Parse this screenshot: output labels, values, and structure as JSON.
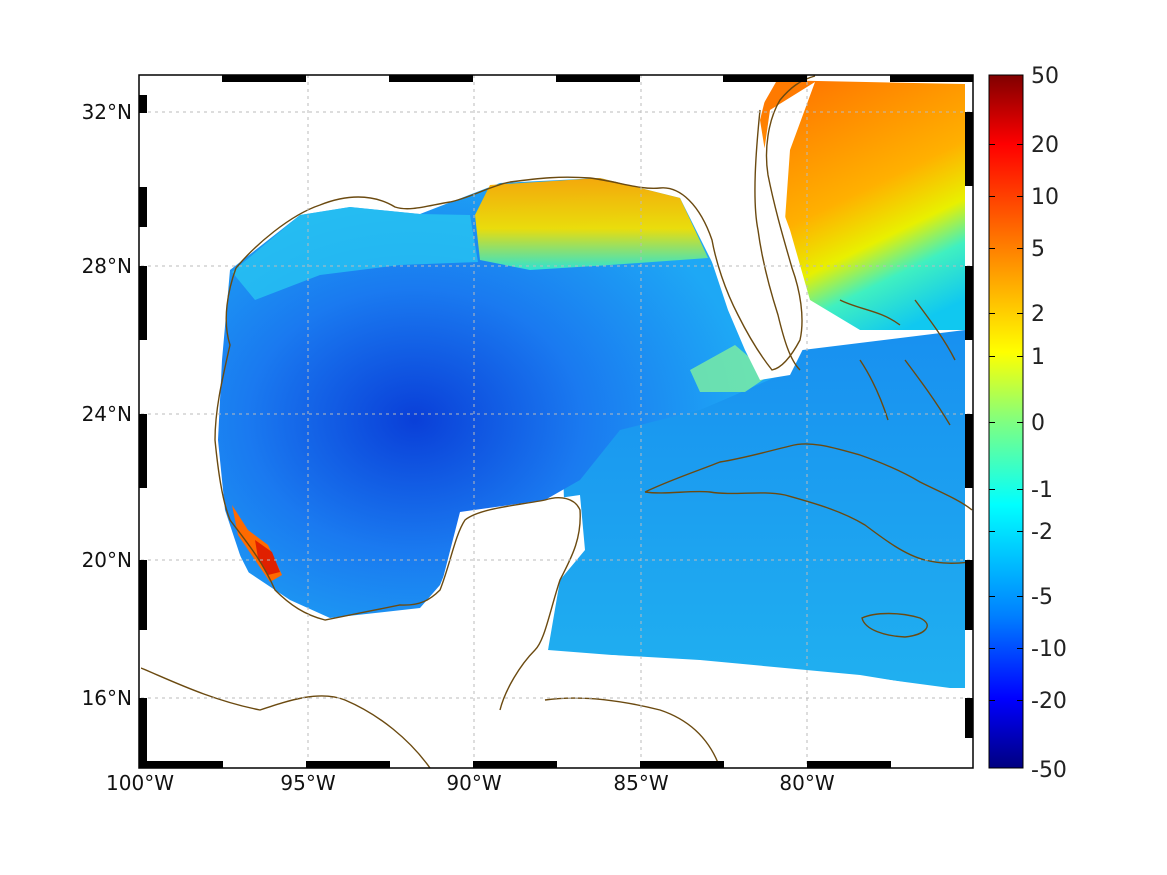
{
  "map": {
    "lon_range": [
      -100,
      -75
    ],
    "lat_range": [
      14.5,
      33
    ],
    "x_ticks": [
      {
        "value": -100,
        "label": "100°W"
      },
      {
        "value": -95,
        "label": "95°W"
      },
      {
        "value": -90,
        "label": "90°W"
      },
      {
        "value": -85,
        "label": "85°W"
      },
      {
        "value": -80,
        "label": "80°W"
      }
    ],
    "y_ticks": [
      {
        "value": 32,
        "label": "32°N"
      },
      {
        "value": 28,
        "label": "28°N"
      },
      {
        "value": 24,
        "label": "24°N"
      },
      {
        "value": 20,
        "label": "20°N"
      },
      {
        "value": 16,
        "label": "16°N"
      }
    ],
    "grid": true,
    "coastline_color": "#6b4a10",
    "border_colors": [
      "#000000",
      "#ffffff"
    ]
  },
  "colorbar": {
    "ticks": [
      "50",
      "20",
      "10",
      "5",
      "2",
      "1",
      "0",
      "-1",
      "-2",
      "-5",
      "-10",
      "-20",
      "-50"
    ],
    "colors": [
      "#800000",
      "#ff0000",
      "#ff8000",
      "#ffff00",
      "#80ff80",
      "#00ffff",
      "#0080ff",
      "#0000ff",
      "#000080"
    ]
  }
}
